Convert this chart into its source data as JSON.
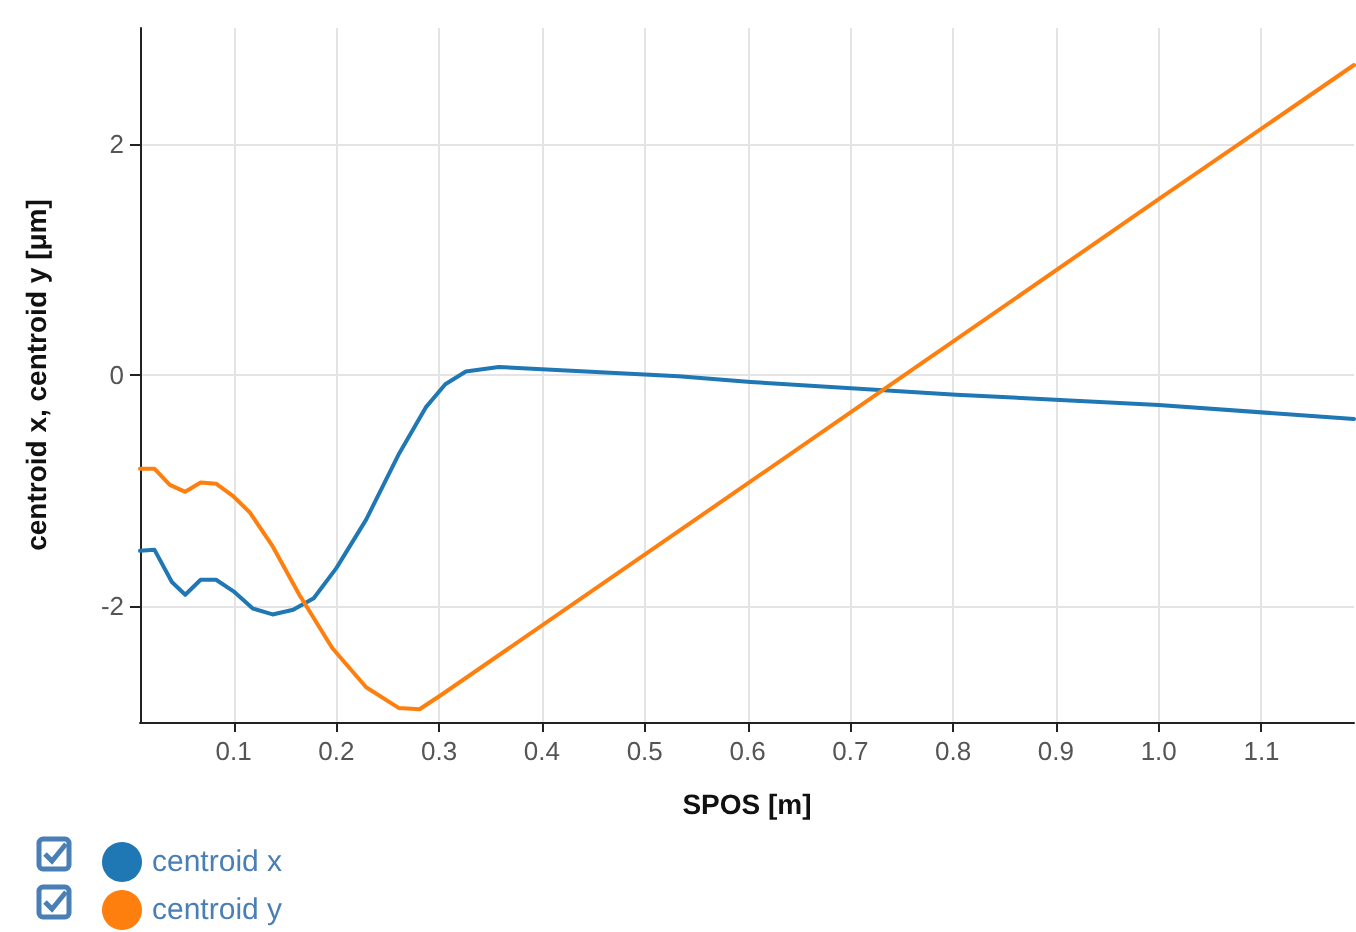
{
  "chart_data": {
    "type": "line",
    "xlabel": "SPOS [m]",
    "ylabel": "centroid x, centroid y [μm]",
    "xlim": [
      0.009,
      1.19
    ],
    "ylim": [
      -3,
      3
    ],
    "xticks": [
      {
        "value": 0.1,
        "label": "0.1"
      },
      {
        "value": 0.2,
        "label": "0.2"
      },
      {
        "value": 0.3,
        "label": "0.3"
      },
      {
        "value": 0.4,
        "label": "0.4"
      },
      {
        "value": 0.5,
        "label": "0.5"
      },
      {
        "value": 0.6,
        "label": "0.6"
      },
      {
        "value": 0.7,
        "label": "0.7"
      },
      {
        "value": 0.8,
        "label": "0.8"
      },
      {
        "value": 0.9,
        "label": "0.9"
      },
      {
        "value": 1.0,
        "label": "1.0"
      },
      {
        "value": 1.1,
        "label": "1.1"
      }
    ],
    "yticks": [
      -2,
      0,
      2
    ],
    "grid": true,
    "legend": "bottom left",
    "marker": "none",
    "line_style": "solid",
    "series": [
      {
        "name": "centroid x",
        "color": "#1f77b4",
        "x": [
          0.009,
          0.023,
          0.04,
          0.053,
          0.068,
          0.083,
          0.1,
          0.119,
          0.138,
          0.158,
          0.178,
          0.2,
          0.229,
          0.261,
          0.287,
          0.306,
          0.326,
          0.358,
          0.4,
          0.533,
          0.603,
          0.803,
          1.0,
          1.19
        ],
        "values": [
          -1.52,
          -1.51,
          -1.79,
          -1.9,
          -1.77,
          -1.77,
          -1.87,
          -2.02,
          -2.07,
          -2.03,
          -1.93,
          -1.67,
          -1.25,
          -0.68,
          -0.28,
          -0.08,
          0.03,
          0.07,
          0.05,
          -0.01,
          -0.06,
          -0.17,
          -0.26,
          -0.38
        ]
      },
      {
        "name": "centroid y",
        "color": "#ff7f0e",
        "x": [
          0.009,
          0.023,
          0.038,
          0.053,
          0.068,
          0.083,
          0.1,
          0.116,
          0.138,
          0.164,
          0.196,
          0.229,
          0.261,
          0.281,
          0.303,
          0.533,
          0.735,
          1.0,
          1.19
        ],
        "values": [
          -0.81,
          -0.81,
          -0.95,
          -1.01,
          -0.93,
          -0.94,
          -1.05,
          -1.19,
          -1.48,
          -1.9,
          -2.36,
          -2.7,
          -2.88,
          -2.89,
          -2.76,
          -1.35,
          -0.11,
          1.52,
          2.68
        ]
      }
    ]
  }
}
